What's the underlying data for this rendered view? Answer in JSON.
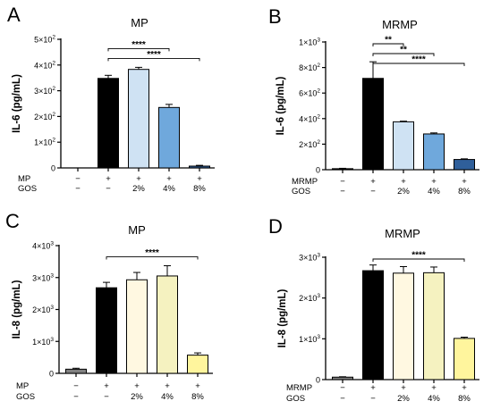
{
  "chart_data": [
    {
      "panel_letter": "A",
      "type": "bar",
      "title": "MP",
      "ylabel": "IL-6 (pg/mL)",
      "ylim": [
        0,
        500
      ],
      "ytick_values": [
        0,
        100,
        200,
        300,
        400,
        500
      ],
      "ytick_labels": [
        {
          "coef": "0",
          "exp": ""
        },
        {
          "coef": "1×10",
          "exp": "2"
        },
        {
          "coef": "2×10",
          "exp": "2"
        },
        {
          "coef": "3×10",
          "exp": "2"
        },
        {
          "coef": "4×10",
          "exp": "2"
        },
        {
          "coef": "5×10",
          "exp": "2"
        }
      ],
      "treatment_rows": [
        {
          "name": "MP",
          "values": [
            "−",
            "+",
            "+",
            "+",
            "+"
          ]
        },
        {
          "name": "GOS",
          "values": [
            "−",
            "−",
            "2%",
            "4%",
            "8%"
          ]
        }
      ],
      "values": [
        0,
        348,
        383,
        235,
        7
      ],
      "errors": [
        0,
        12,
        8,
        12,
        3
      ],
      "colors": [
        "#000000",
        "#000000",
        "#cfe2f3",
        "#6fa8dc",
        "#2f5f9a"
      ],
      "significance": [
        {
          "from": 1,
          "to": 3,
          "label": "****"
        },
        {
          "from": 1,
          "to": 4,
          "label": "****"
        }
      ]
    },
    {
      "panel_letter": "B",
      "type": "bar",
      "title": "MRMP",
      "ylabel": "IL-6 (pg/mL)",
      "ylim": [
        0,
        1000
      ],
      "ytick_values": [
        0,
        200,
        400,
        600,
        800,
        1000
      ],
      "ytick_labels": [
        {
          "coef": "0",
          "exp": ""
        },
        {
          "coef": "2×10",
          "exp": "2"
        },
        {
          "coef": "4×10",
          "exp": "2"
        },
        {
          "coef": "6×10",
          "exp": "2"
        },
        {
          "coef": "8×10",
          "exp": "2"
        },
        {
          "coef": "1×10",
          "exp": "3"
        }
      ],
      "treatment_rows": [
        {
          "name": "MRMP",
          "values": [
            "−",
            "+",
            "+",
            "+",
            "+"
          ]
        },
        {
          "name": "GOS",
          "values": [
            "−",
            "−",
            "2%",
            "4%",
            "8%"
          ]
        }
      ],
      "values": [
        8,
        715,
        375,
        280,
        80
      ],
      "errors": [
        3,
        130,
        5,
        8,
        5
      ],
      "colors": [
        "#000000",
        "#000000",
        "#cfe2f3",
        "#6fa8dc",
        "#2f5f9a"
      ],
      "significance": [
        {
          "from": 1,
          "to": 2,
          "label": "**"
        },
        {
          "from": 1,
          "to": 3,
          "label": "**"
        },
        {
          "from": 1,
          "to": 4,
          "label": "****"
        }
      ]
    },
    {
      "panel_letter": "C",
      "type": "bar",
      "title": "MP",
      "ylabel": "IL-8 (pg/mL)",
      "ylim": [
        0,
        4000
      ],
      "ytick_values": [
        0,
        1000,
        2000,
        3000,
        4000
      ],
      "ytick_labels": [
        {
          "coef": "0",
          "exp": ""
        },
        {
          "coef": "1×10",
          "exp": "3"
        },
        {
          "coef": "2×10",
          "exp": "3"
        },
        {
          "coef": "3×10",
          "exp": "3"
        },
        {
          "coef": "4×10",
          "exp": "3"
        }
      ],
      "treatment_rows": [
        {
          "name": "MP",
          "values": [
            "−",
            "+",
            "+",
            "+",
            "+"
          ]
        },
        {
          "name": "GOS",
          "values": [
            "−",
            "−",
            "2%",
            "4%",
            "8%"
          ]
        }
      ],
      "values": [
        130,
        2680,
        2930,
        3050,
        570
      ],
      "errors": [
        30,
        170,
        230,
        320,
        70
      ],
      "colors": [
        "#808080",
        "#000000",
        "#fff8e1",
        "#f5f2c0",
        "#fff59d"
      ],
      "significance": [
        {
          "from": 1,
          "to": 4,
          "label": "****"
        }
      ]
    },
    {
      "panel_letter": "D",
      "type": "bar",
      "title": "MRMP",
      "ylabel": "IL-8 (pg/mL)",
      "ylim": [
        0,
        3000
      ],
      "ytick_values": [
        0,
        1000,
        2000,
        3000
      ],
      "ytick_labels": [
        {
          "coef": "0",
          "exp": ""
        },
        {
          "coef": "1×10",
          "exp": "3"
        },
        {
          "coef": "2×10",
          "exp": "3"
        },
        {
          "coef": "3×10",
          "exp": "3"
        }
      ],
      "treatment_rows": [
        {
          "name": "MRMP",
          "values": [
            "−",
            "+",
            "+",
            "+",
            "+"
          ]
        },
        {
          "name": "GOS",
          "values": [
            "−",
            "−",
            "2%",
            "4%",
            "8%"
          ]
        }
      ],
      "values": [
        60,
        2670,
        2610,
        2620,
        1010
      ],
      "errors": [
        10,
        140,
        160,
        140,
        30
      ],
      "colors": [
        "#808080",
        "#000000",
        "#fff8e1",
        "#f5f2c0",
        "#fff59d"
      ],
      "significance": [
        {
          "from": 1,
          "to": 4,
          "label": "****"
        }
      ]
    }
  ]
}
